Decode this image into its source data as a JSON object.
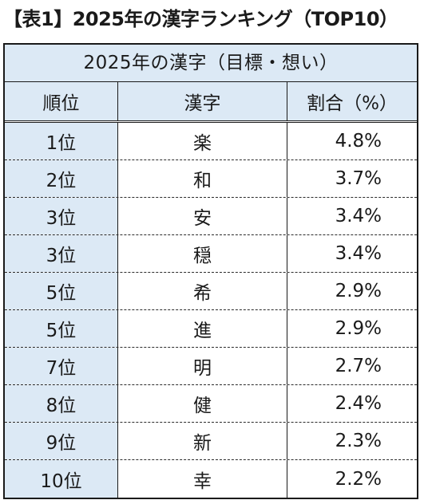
{
  "page": {
    "title": "【表1】2025年の漢字ランキング（TOP10）"
  },
  "table": {
    "caption": "2025年の漢字（目標・想い）",
    "headers": {
      "rank": "順位",
      "kanji": "漢字",
      "percent": "割合（%）"
    },
    "rows": [
      {
        "rank": "1位",
        "kanji": "楽",
        "percent": "4.8%"
      },
      {
        "rank": "2位",
        "kanji": "和",
        "percent": "3.7%"
      },
      {
        "rank": "3位",
        "kanji": "安",
        "percent": "3.4%"
      },
      {
        "rank": "3位",
        "kanji": "穏",
        "percent": "3.4%"
      },
      {
        "rank": "5位",
        "kanji": "希",
        "percent": "2.9%"
      },
      {
        "rank": "5位",
        "kanji": "進",
        "percent": "2.9%"
      },
      {
        "rank": "7位",
        "kanji": "明",
        "percent": "2.7%"
      },
      {
        "rank": "8位",
        "kanji": "健",
        "percent": "2.4%"
      },
      {
        "rank": "9位",
        "kanji": "新",
        "percent": "2.3%"
      },
      {
        "rank": "10位",
        "kanji": "幸",
        "percent": "2.2%"
      }
    ]
  },
  "colors": {
    "header_fill": "#dce9f5",
    "border": "#1a1a1a",
    "text": "#1a1a1a"
  }
}
